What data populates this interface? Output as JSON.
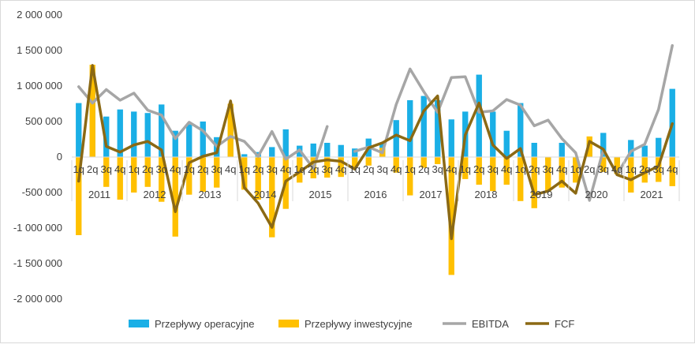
{
  "chart_data": {
    "type": "bar",
    "grid": false,
    "legend_position": "bottom",
    "ylim": [
      -2000000,
      2000000
    ],
    "y_ticks": [
      2000000,
      1500000,
      1000000,
      500000,
      0,
      -500000,
      -1000000,
      -1500000,
      -2000000
    ],
    "y_tick_labels": [
      "2 000 000",
      "1 500 000",
      "1 000 000",
      "500 000",
      "0",
      "-500 000",
      "-1 000 000",
      "-1 500 000",
      "-2 000 000"
    ],
    "years": [
      "2011",
      "2012",
      "2013",
      "2014",
      "2015",
      "2016",
      "2017",
      "2018",
      "2019",
      "2020",
      "2021"
    ],
    "quarter_labels": [
      "1q",
      "2q",
      "3q",
      "4q"
    ],
    "series": [
      {
        "name": "Przepływy operacyjne",
        "kind": "bar",
        "color": "#1aafe6",
        "values": [
          760000,
          1100000,
          570000,
          670000,
          640000,
          620000,
          740000,
          370000,
          460000,
          500000,
          280000,
          380000,
          40000,
          70000,
          140000,
          390000,
          160000,
          190000,
          200000,
          170000,
          120000,
          260000,
          200000,
          520000,
          800000,
          860000,
          800000,
          530000,
          640000,
          1160000,
          640000,
          370000,
          760000,
          200000,
          -50000,
          200000,
          -80000,
          200000,
          340000,
          -80000,
          240000,
          160000,
          270000,
          960000
        ]
      },
      {
        "name": "Przepływy inwestycyjne",
        "kind": "bar",
        "color": "#ffc000",
        "values": [
          -1100000,
          1300000,
          -420000,
          -600000,
          -500000,
          -420000,
          -630000,
          -1120000,
          -530000,
          -490000,
          -430000,
          750000,
          -460000,
          -600000,
          -1130000,
          -730000,
          -360000,
          -300000,
          -290000,
          -280000,
          -140000,
          -120000,
          130000,
          -220000,
          -540000,
          -150000,
          -100000,
          -1660000,
          -310000,
          -390000,
          -480000,
          -390000,
          -620000,
          -720000,
          -490000,
          -430000,
          -360000,
          290000,
          -210000,
          -240000,
          -500000,
          -360000,
          -350000,
          -410000
        ]
      },
      {
        "name": "EBITDA",
        "kind": "line",
        "color": "#a6a6a6",
        "values": [
          990000,
          760000,
          950000,
          800000,
          900000,
          660000,
          590000,
          260000,
          490000,
          370000,
          150000,
          290000,
          220000,
          10000,
          360000,
          -30000,
          100000,
          -160000,
          430000,
          null,
          80000,
          140000,
          60000,
          740000,
          1240000,
          920000,
          630000,
          1120000,
          1130000,
          630000,
          650000,
          810000,
          730000,
          440000,
          520000,
          260000,
          60000,
          -610000,
          100000,
          -240000,
          80000,
          180000,
          670000,
          1570000
        ]
      },
      {
        "name": "FCF",
        "kind": "line",
        "color": "#8b6914",
        "values": [
          -340000,
          1290000,
          150000,
          70000,
          170000,
          220000,
          100000,
          -770000,
          -80000,
          10000,
          60000,
          790000,
          -430000,
          -650000,
          -990000,
          -340000,
          -210000,
          -70000,
          -40000,
          -60000,
          -170000,
          130000,
          200000,
          310000,
          230000,
          650000,
          860000,
          -1150000,
          310000,
          760000,
          170000,
          -20000,
          120000,
          -530000,
          -480000,
          -340000,
          -510000,
          220000,
          110000,
          -250000,
          -320000,
          -220000,
          -130000,
          470000
        ]
      }
    ]
  }
}
